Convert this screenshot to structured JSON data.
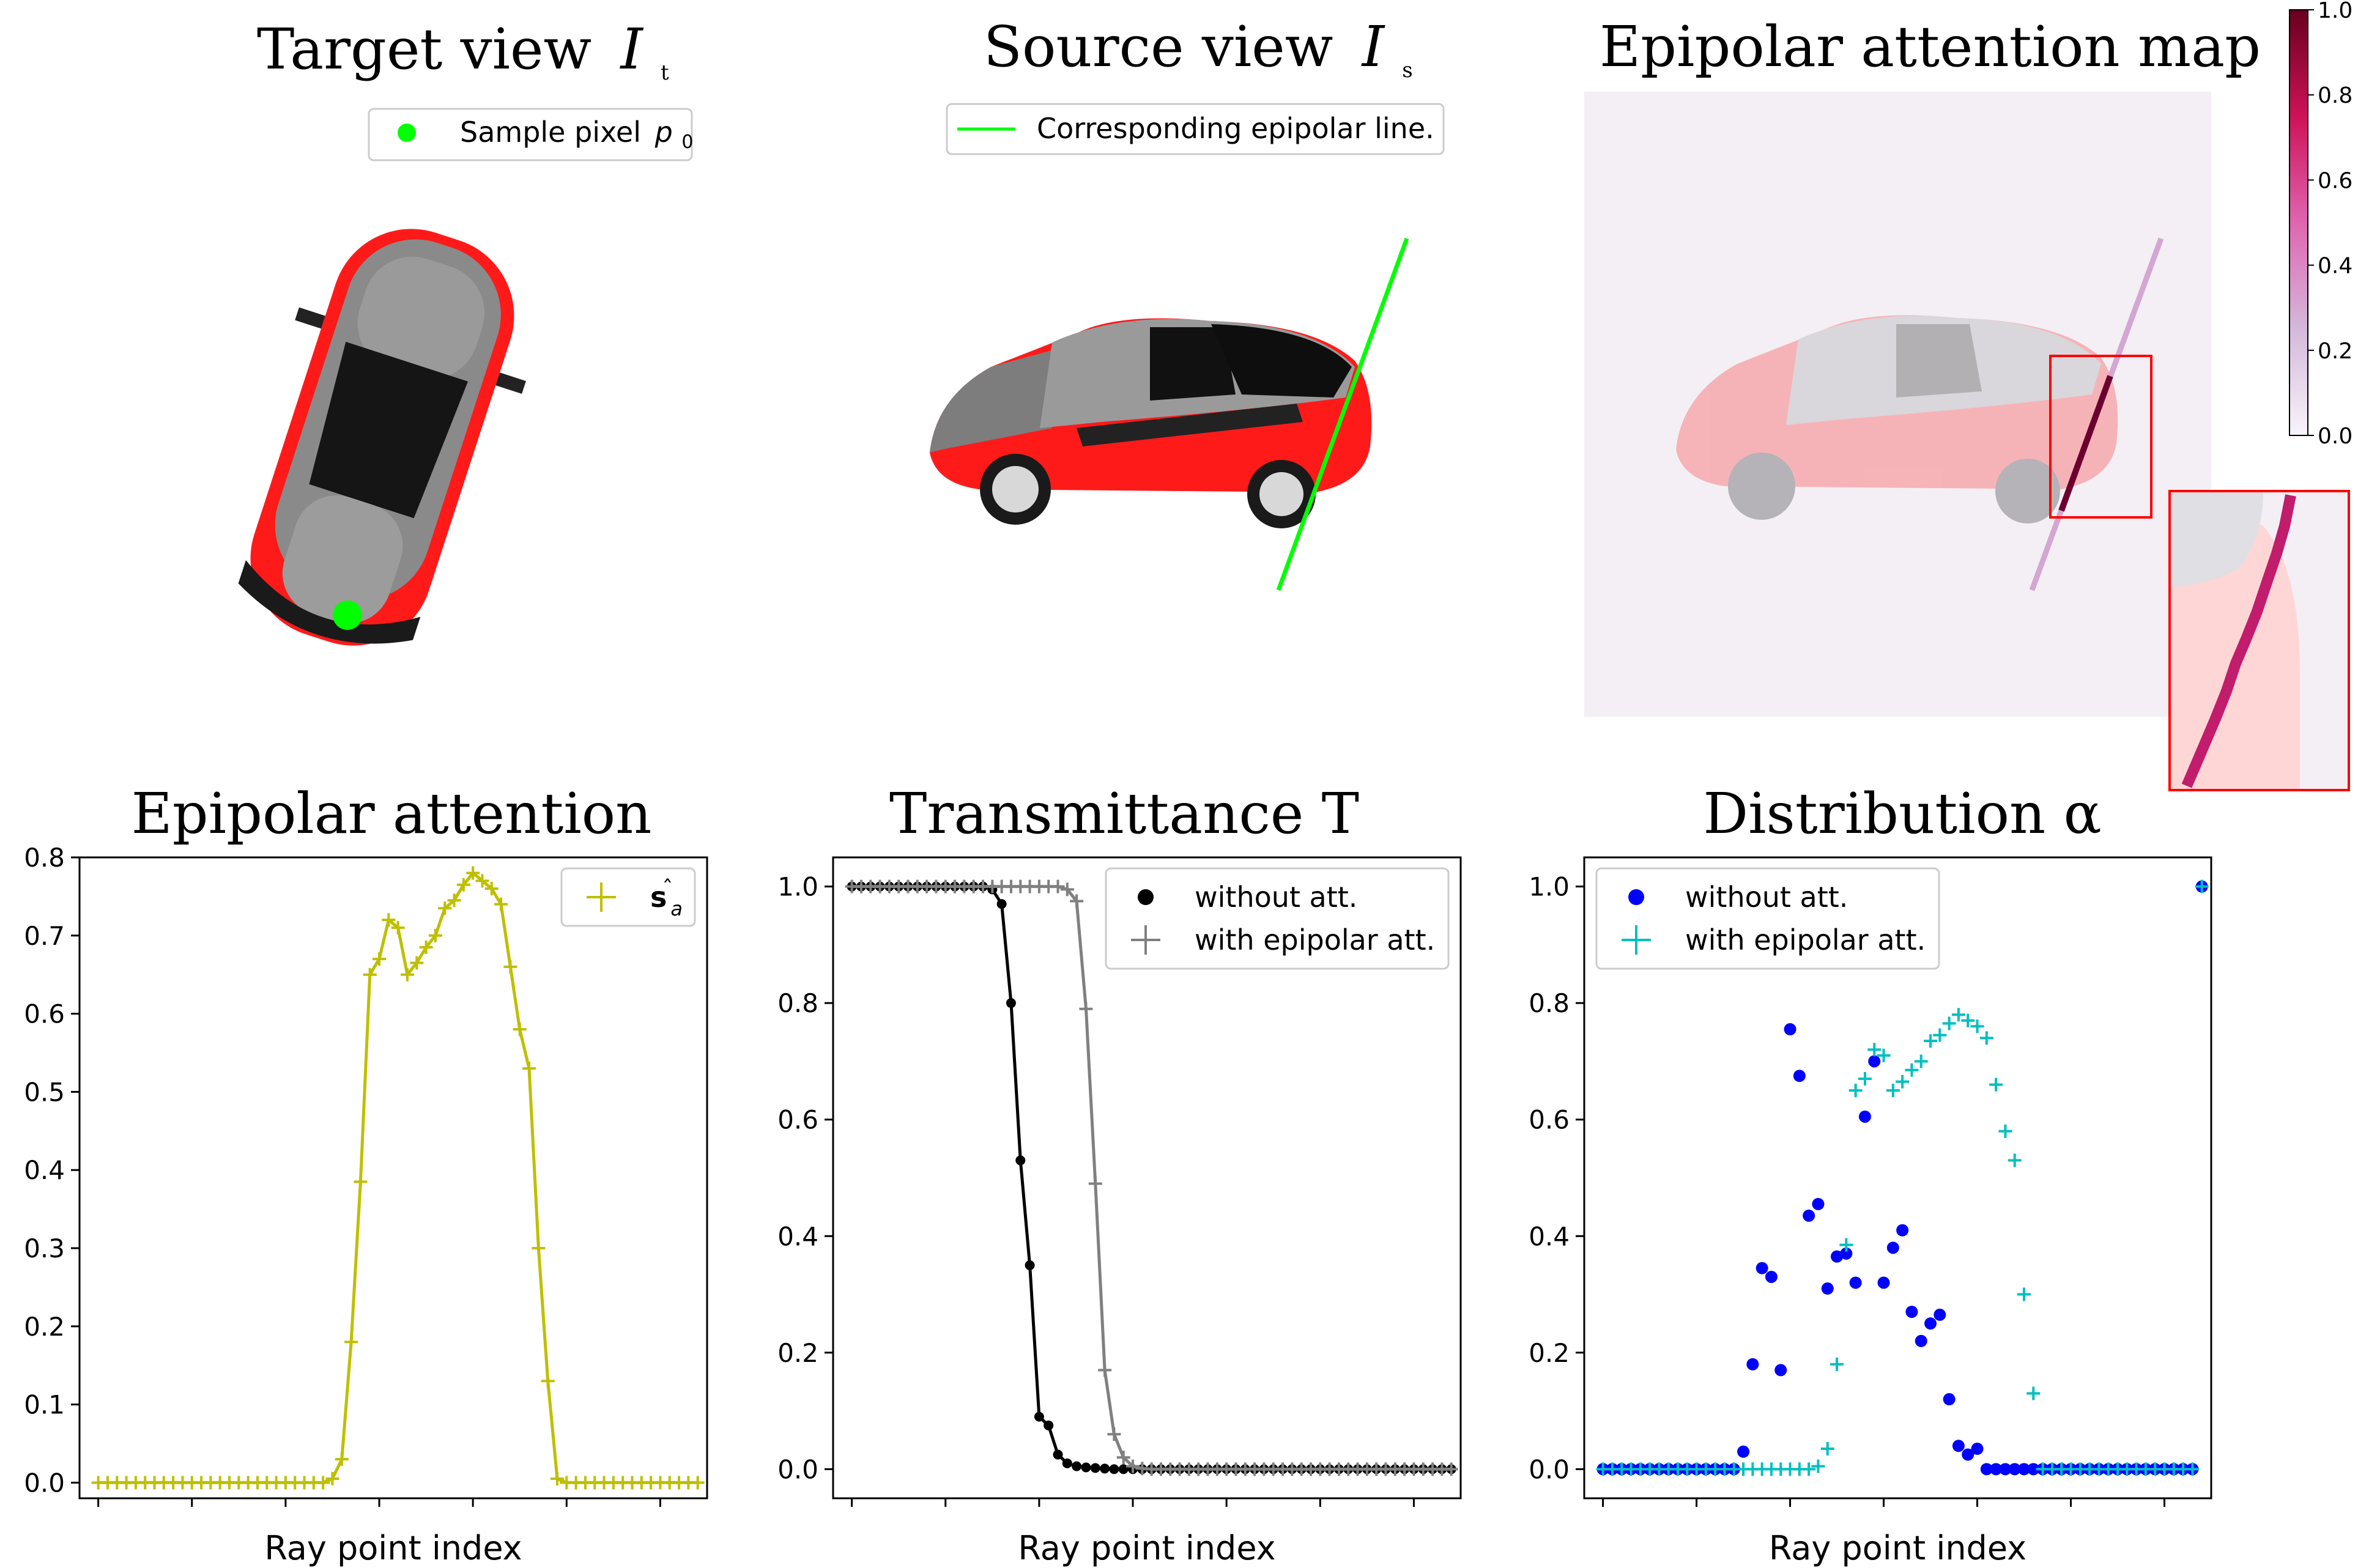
{
  "colors": {
    "green": "#00ff00",
    "olive": "#bfbf00",
    "cyan": "#00bfbf",
    "blue": "#0000ff",
    "black": "#000000",
    "gray": "#808080",
    "red": "#ff0000",
    "crimson": "#6b0030",
    "magenta": "#e7298a"
  },
  "top": {
    "target": {
      "title": "Target view",
      "title_sym": "I",
      "title_sub": "t",
      "legend_label": "Sample pixel",
      "legend_sym": "p",
      "legend_sub": "0"
    },
    "source": {
      "title": "Source view",
      "title_sym": "I",
      "title_sub": "s",
      "legend_label": "Corresponding epipolar line."
    },
    "map": {
      "title": "Epipolar attention map"
    }
  },
  "chart_data": [
    {
      "type": "line",
      "id": "attention",
      "title": "Epipolar attention",
      "xlabel": "Ray point index",
      "ylabel": "",
      "ylim": [
        -0.02,
        0.8
      ],
      "xlim": [
        -2,
        65
      ],
      "yticks": [
        0.0,
        0.1,
        0.2,
        0.3,
        0.4,
        0.5,
        0.6,
        0.7,
        0.8
      ],
      "xticks": [
        0,
        10,
        20,
        30,
        40,
        50,
        60
      ],
      "grid": false,
      "legend_position": "upper right",
      "series": [
        {
          "name": "ŝ_a",
          "legend_main": "s",
          "legend_accent": "ˆ",
          "legend_sub": "a",
          "color": "#bfbf00",
          "marker": "plus",
          "line": true,
          "x": [
            0,
            1,
            2,
            3,
            4,
            5,
            6,
            7,
            8,
            9,
            10,
            11,
            12,
            13,
            14,
            15,
            16,
            17,
            18,
            19,
            20,
            21,
            22,
            23,
            24,
            25,
            26,
            27,
            28,
            29,
            30,
            31,
            32,
            33,
            34,
            35,
            36,
            37,
            38,
            39,
            40,
            41,
            42,
            43,
            44,
            45,
            46,
            47,
            48,
            49,
            50,
            51,
            52,
            53,
            54,
            55,
            56,
            57,
            58,
            59,
            60,
            61,
            62,
            63,
            64
          ],
          "y": [
            0,
            0,
            0,
            0,
            0,
            0,
            0,
            0,
            0,
            0,
            0,
            0,
            0,
            0,
            0,
            0,
            0,
            0,
            0,
            0,
            0,
            0,
            0,
            0,
            0,
            0.005,
            0.03,
            0.18,
            0.385,
            0.65,
            0.67,
            0.72,
            0.71,
            0.65,
            0.665,
            0.685,
            0.7,
            0.735,
            0.745,
            0.765,
            0.78,
            0.77,
            0.76,
            0.74,
            0.66,
            0.58,
            0.53,
            0.3,
            0.13,
            0.005,
            0,
            0,
            0,
            0,
            0,
            0,
            0,
            0,
            0,
            0,
            0,
            0,
            0,
            0,
            0
          ]
        }
      ]
    },
    {
      "type": "line",
      "id": "transmittance",
      "title": "Transmittance T",
      "xlabel": "Ray point index",
      "ylabel": "",
      "ylim": [
        -0.05,
        1.05
      ],
      "xlim": [
        -2,
        65
      ],
      "yticks": [
        0.0,
        0.2,
        0.4,
        0.6,
        0.8,
        1.0
      ],
      "xticks": [
        0,
        10,
        20,
        30,
        40,
        50,
        60
      ],
      "grid": false,
      "legend_position": "upper right",
      "series": [
        {
          "name": "without att.",
          "color": "#000000",
          "marker": "dot",
          "line": true,
          "x": [
            0,
            1,
            2,
            3,
            4,
            5,
            6,
            7,
            8,
            9,
            10,
            11,
            12,
            13,
            14,
            15,
            16,
            17,
            18,
            19,
            20,
            21,
            22,
            23,
            24,
            25,
            26,
            27,
            28,
            29,
            30,
            31,
            32,
            33,
            34,
            35,
            36,
            37,
            38,
            39,
            40,
            41,
            42,
            43,
            44,
            45,
            46,
            47,
            48,
            49,
            50,
            51,
            52,
            53,
            54,
            55,
            56,
            57,
            58,
            59,
            60,
            61,
            62,
            63,
            64
          ],
          "y": [
            1,
            1,
            1,
            1,
            1,
            1,
            1,
            1,
            1,
            1,
            1,
            1,
            1,
            1,
            1,
            0.995,
            0.97,
            0.8,
            0.53,
            0.35,
            0.09,
            0.075,
            0.025,
            0.01,
            0.005,
            0.003,
            0.002,
            0.001,
            0,
            0,
            0,
            0,
            0,
            0,
            0,
            0,
            0,
            0,
            0,
            0,
            0,
            0,
            0,
            0,
            0,
            0,
            0,
            0,
            0,
            0,
            0,
            0,
            0,
            0,
            0,
            0,
            0,
            0,
            0,
            0,
            0,
            0,
            0,
            0,
            0
          ]
        },
        {
          "name": "with epipolar att.",
          "color": "#808080",
          "marker": "plus",
          "line": true,
          "x": [
            0,
            1,
            2,
            3,
            4,
            5,
            6,
            7,
            8,
            9,
            10,
            11,
            12,
            13,
            14,
            15,
            16,
            17,
            18,
            19,
            20,
            21,
            22,
            23,
            24,
            25,
            26,
            27,
            28,
            29,
            30,
            31,
            32,
            33,
            34,
            35,
            36,
            37,
            38,
            39,
            40,
            41,
            42,
            43,
            44,
            45,
            46,
            47,
            48,
            49,
            50,
            51,
            52,
            53,
            54,
            55,
            56,
            57,
            58,
            59,
            60,
            61,
            62,
            63,
            64
          ],
          "y": [
            1,
            1,
            1,
            1,
            1,
            1,
            1,
            1,
            1,
            1,
            1,
            1,
            1,
            1,
            1,
            1,
            1,
            1,
            1,
            1,
            1,
            1,
            1,
            0.995,
            0.975,
            0.79,
            0.49,
            0.17,
            0.06,
            0.02,
            0.005,
            0.001,
            0,
            0,
            0,
            0,
            0,
            0,
            0,
            0,
            0,
            0,
            0,
            0,
            0,
            0,
            0,
            0,
            0,
            0,
            0,
            0,
            0,
            0,
            0,
            0,
            0,
            0,
            0,
            0,
            0,
            0,
            0,
            0,
            0
          ]
        }
      ]
    },
    {
      "type": "scatter",
      "id": "distribution",
      "title": "Distribution α",
      "xlabel": "Ray point index",
      "ylabel": "",
      "ylim": [
        -0.05,
        1.05
      ],
      "xlim": [
        -2,
        65
      ],
      "yticks": [
        0.0,
        0.2,
        0.4,
        0.6,
        0.8,
        1.0
      ],
      "xticks": [
        0,
        10,
        20,
        30,
        40,
        50,
        60
      ],
      "grid": false,
      "legend_position": "upper left",
      "series": [
        {
          "name": "without att.",
          "color": "#0000ff",
          "marker": "dot",
          "line": false,
          "x": [
            0,
            1,
            2,
            3,
            4,
            5,
            6,
            7,
            8,
            9,
            10,
            11,
            12,
            13,
            14,
            15,
            16,
            17,
            18,
            19,
            20,
            21,
            22,
            23,
            24,
            25,
            26,
            27,
            28,
            29,
            30,
            31,
            32,
            33,
            34,
            35,
            36,
            37,
            38,
            39,
            40,
            41,
            42,
            43,
            44,
            45,
            46,
            47,
            48,
            49,
            50,
            51,
            52,
            53,
            54,
            55,
            56,
            57,
            58,
            59,
            60,
            61,
            62,
            63,
            64
          ],
          "y": [
            0,
            0,
            0,
            0,
            0,
            0,
            0,
            0,
            0,
            0,
            0,
            0,
            0,
            0,
            0,
            0.03,
            0.18,
            0.345,
            0.33,
            0.17,
            0.755,
            0.675,
            0.435,
            0.455,
            0.31,
            0.365,
            0.37,
            0.32,
            0.605,
            0.7,
            0.32,
            0.38,
            0.41,
            0.27,
            0.22,
            0.25,
            0.265,
            0.12,
            0.04,
            0.025,
            0.035,
            0,
            0,
            0,
            0,
            0,
            0,
            0,
            0,
            0,
            0,
            0,
            0,
            0,
            0,
            0,
            0,
            0,
            0,
            0,
            0,
            0,
            0,
            0,
            1.0
          ]
        },
        {
          "name": "with epipolar att.",
          "color": "#00bfbf",
          "marker": "plus",
          "line": false,
          "x": [
            0,
            1,
            2,
            3,
            4,
            5,
            6,
            7,
            8,
            9,
            10,
            11,
            12,
            13,
            14,
            15,
            16,
            17,
            18,
            19,
            20,
            21,
            22,
            23,
            24,
            25,
            26,
            27,
            28,
            29,
            30,
            31,
            32,
            33,
            34,
            35,
            36,
            37,
            38,
            39,
            40,
            41,
            42,
            43,
            44,
            45,
            46,
            47,
            48,
            49,
            50,
            51,
            52,
            53,
            54,
            55,
            56,
            57,
            58,
            59,
            60,
            61,
            62,
            63,
            64
          ],
          "y": [
            0,
            0,
            0,
            0,
            0,
            0,
            0,
            0,
            0,
            0,
            0,
            0,
            0,
            0,
            0,
            0,
            0,
            0,
            0,
            0,
            0,
            0,
            0,
            0.005,
            0.035,
            0.18,
            0.385,
            0.65,
            0.67,
            0.72,
            0.71,
            0.65,
            0.665,
            0.685,
            0.7,
            0.735,
            0.745,
            0.765,
            0.78,
            0.77,
            0.76,
            0.74,
            0.66,
            0.58,
            0.53,
            0.3,
            0.13,
            0,
            0,
            0,
            0,
            0,
            0,
            0,
            0,
            0,
            0,
            0,
            0,
            0,
            0,
            0,
            0,
            0,
            1.0
          ]
        }
      ]
    },
    {
      "type": "colorbar",
      "id": "colorbar",
      "range": [
        0.0,
        1.0
      ],
      "ticks": [
        "1.0",
        "0.8",
        "0.6",
        "0.4",
        "0.2",
        "0.0"
      ]
    }
  ]
}
